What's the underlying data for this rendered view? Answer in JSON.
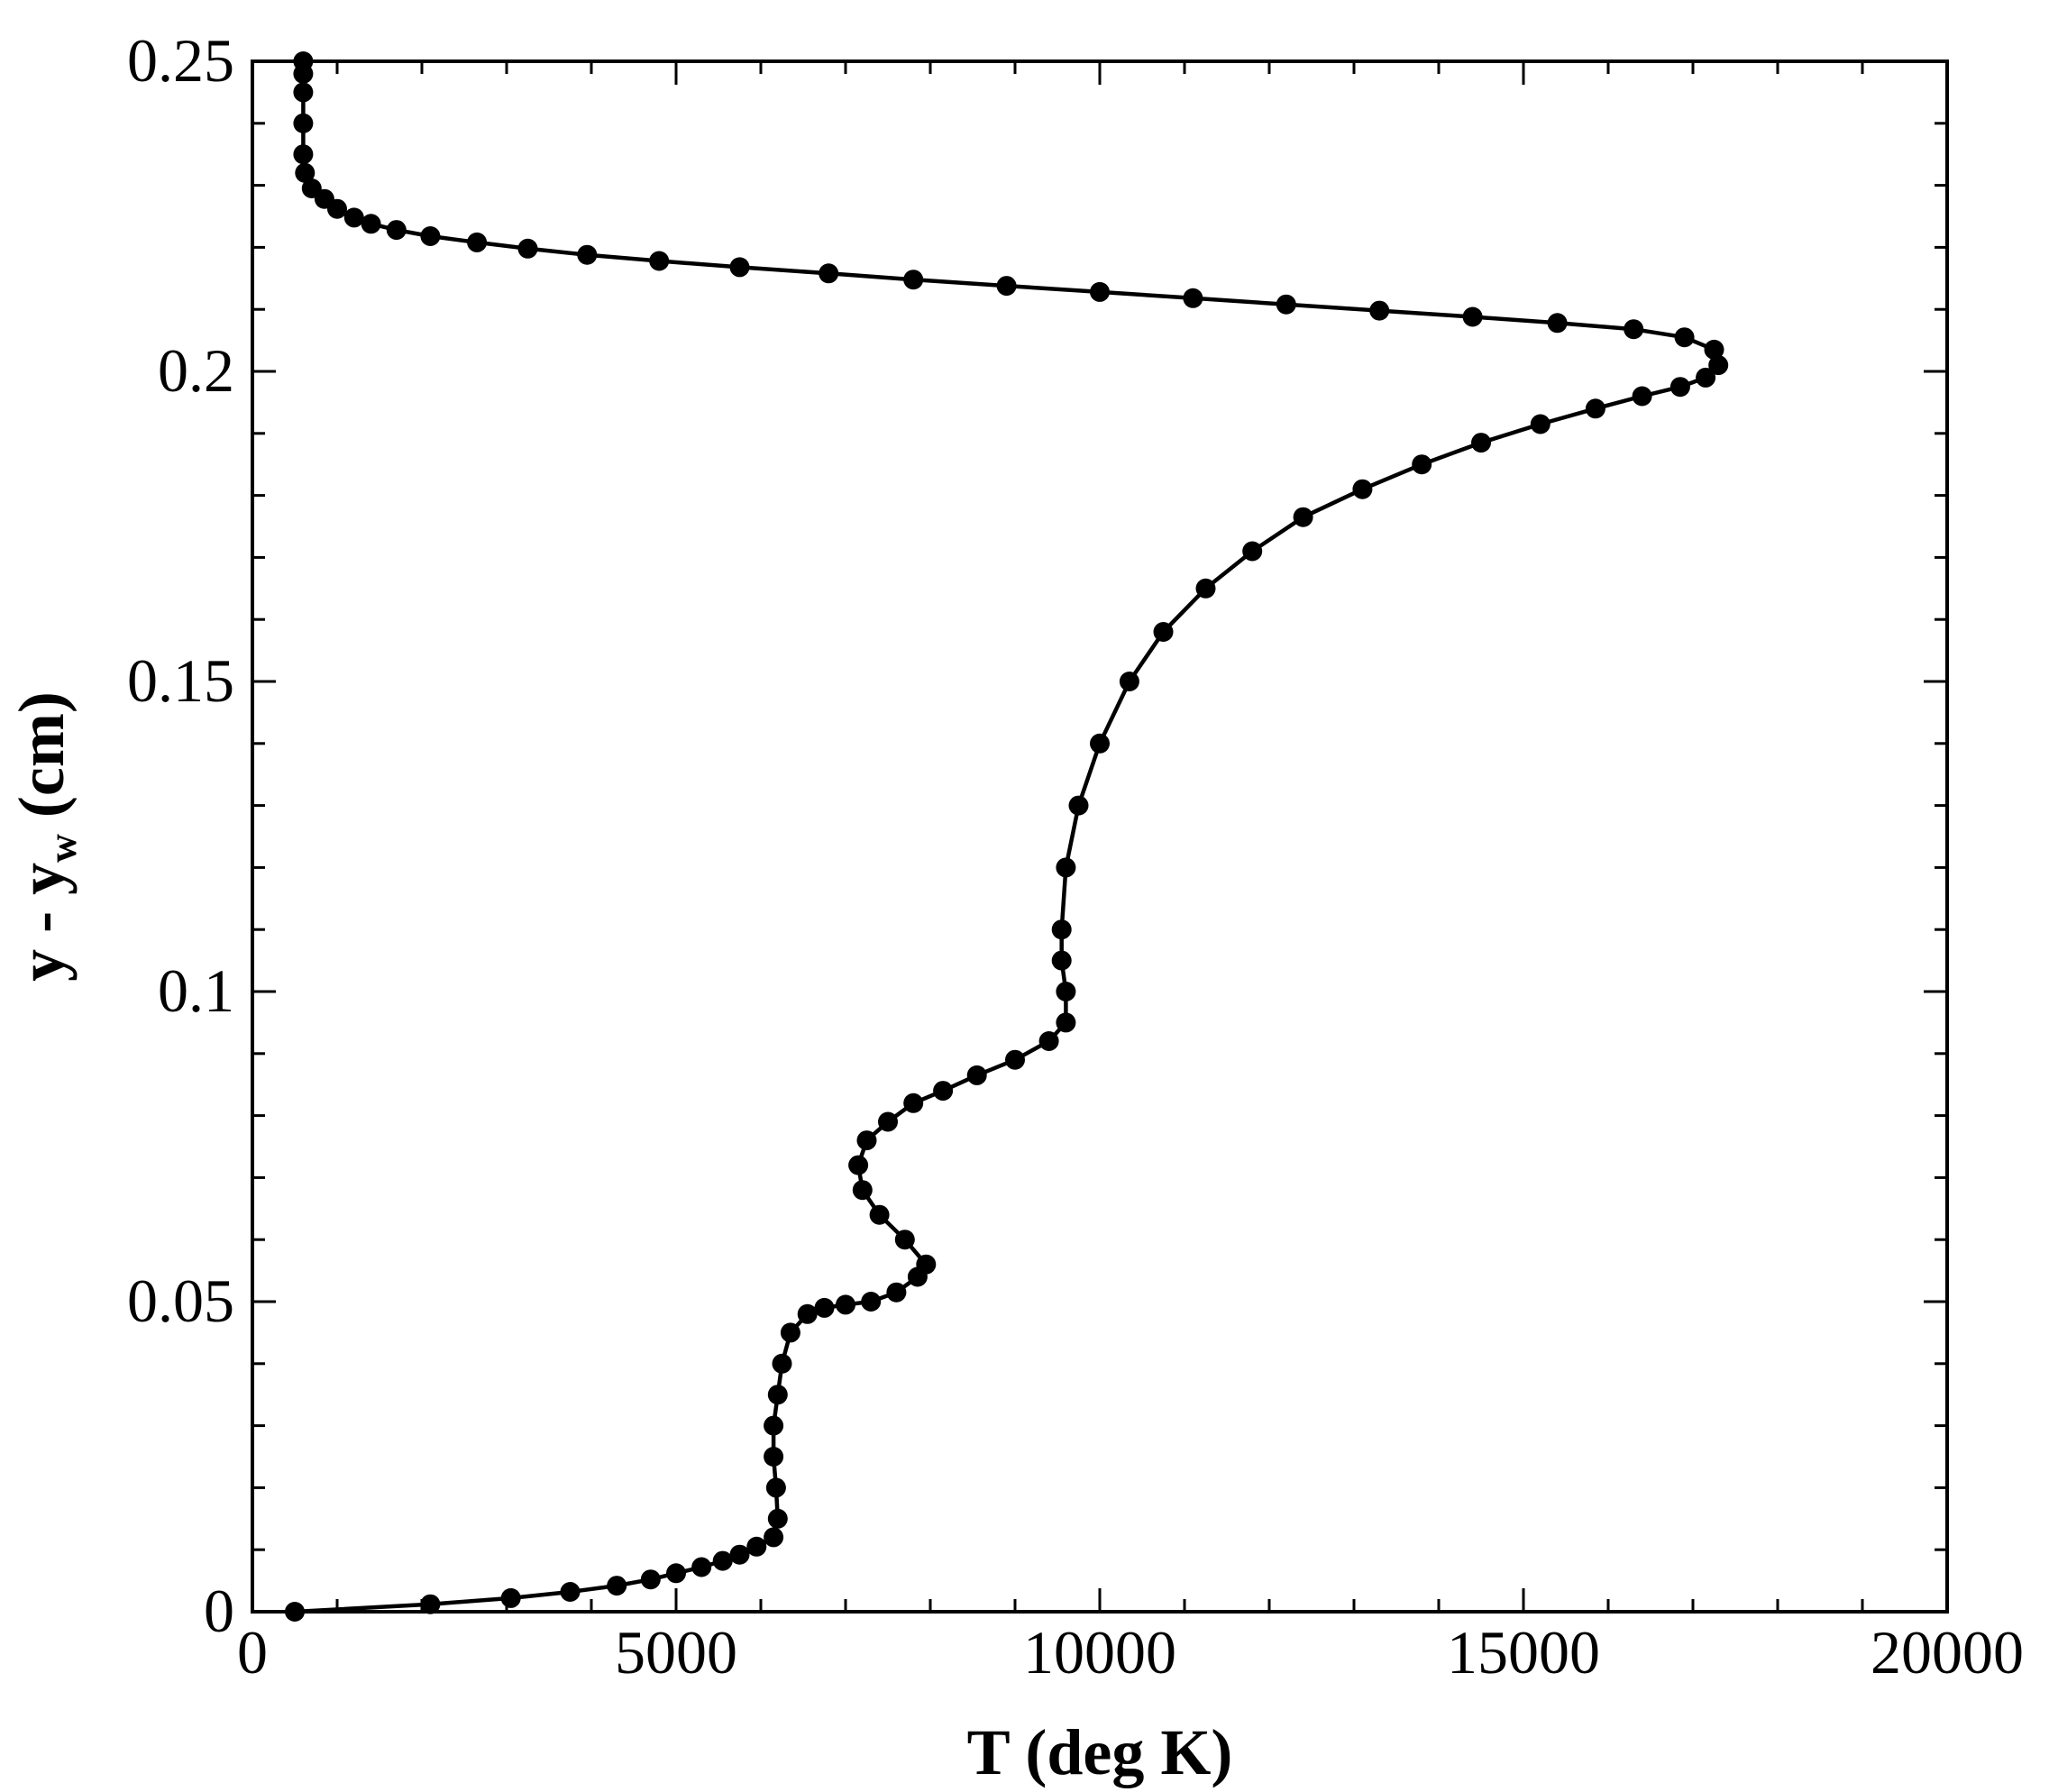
{
  "chart_data": {
    "type": "line",
    "xlabel": "T (deg K)",
    "ylabel_main": "y - y",
    "ylabel_sub": "w",
    "ylabel_unit": "(cm)",
    "xlim": [
      0,
      20000
    ],
    "ylim": [
      0,
      0.25
    ],
    "x_major_ticks": [
      0,
      5000,
      10000,
      15000,
      20000
    ],
    "x_tick_labels": [
      "0",
      "5000",
      "10000",
      "15000",
      "20000"
    ],
    "x_minor_step": 1000,
    "y_major_ticks": [
      0,
      0.05,
      0.1,
      0.15,
      0.2,
      0.25
    ],
    "y_tick_labels": [
      "0",
      "0.05",
      "0.1",
      "0.15",
      "0.2",
      "0.25"
    ],
    "y_minor_step": 0.01,
    "grid": false,
    "series": [
      {
        "marker": "circle",
        "color": "#000000",
        "x": [
          500,
          2100,
          3050,
          3750,
          4300,
          4700,
          5000,
          5300,
          5550,
          5750,
          5950,
          6150,
          6200,
          6180,
          6150,
          6150,
          6200,
          6250,
          6350,
          6550,
          6750,
          7000,
          7300,
          7600,
          7850,
          7950,
          7700,
          7400,
          7200,
          7150,
          7250,
          7500,
          7800,
          8150,
          8550,
          9000,
          9400,
          9600,
          9600,
          9550,
          9550,
          9600,
          9750,
          10000,
          10350,
          10750,
          11250,
          11800,
          12400,
          13100,
          13800,
          14500,
          15200,
          15850,
          16400,
          16850,
          17150,
          17300,
          17250,
          16900,
          16300,
          15400,
          14400,
          13300,
          12200,
          11100,
          10000,
          8900,
          7800,
          6800,
          5750,
          4800,
          3950,
          3250,
          2650,
          2100,
          1700,
          1400,
          1200,
          1000,
          850,
          700,
          620,
          600,
          600,
          600,
          600,
          600
        ],
        "y": [
          0.0,
          0.0012,
          0.0022,
          0.0032,
          0.0042,
          0.0052,
          0.0062,
          0.0072,
          0.0082,
          0.0092,
          0.0105,
          0.012,
          0.015,
          0.02,
          0.025,
          0.03,
          0.035,
          0.04,
          0.045,
          0.048,
          0.049,
          0.0495,
          0.05,
          0.0515,
          0.054,
          0.056,
          0.06,
          0.064,
          0.068,
          0.072,
          0.076,
          0.079,
          0.082,
          0.084,
          0.0865,
          0.089,
          0.092,
          0.095,
          0.1,
          0.105,
          0.11,
          0.12,
          0.13,
          0.14,
          0.15,
          0.158,
          0.165,
          0.171,
          0.1765,
          0.181,
          0.185,
          0.1885,
          0.1915,
          0.194,
          0.196,
          0.1975,
          0.199,
          0.201,
          0.2035,
          0.2055,
          0.2068,
          0.2078,
          0.2088,
          0.2098,
          0.2108,
          0.2118,
          0.2128,
          0.2138,
          0.2148,
          0.2158,
          0.2168,
          0.2178,
          0.2188,
          0.2198,
          0.2208,
          0.2218,
          0.2228,
          0.2238,
          0.2248,
          0.2262,
          0.2278,
          0.2295,
          0.232,
          0.235,
          0.24,
          0.245,
          0.248,
          0.25
        ]
      }
    ]
  }
}
